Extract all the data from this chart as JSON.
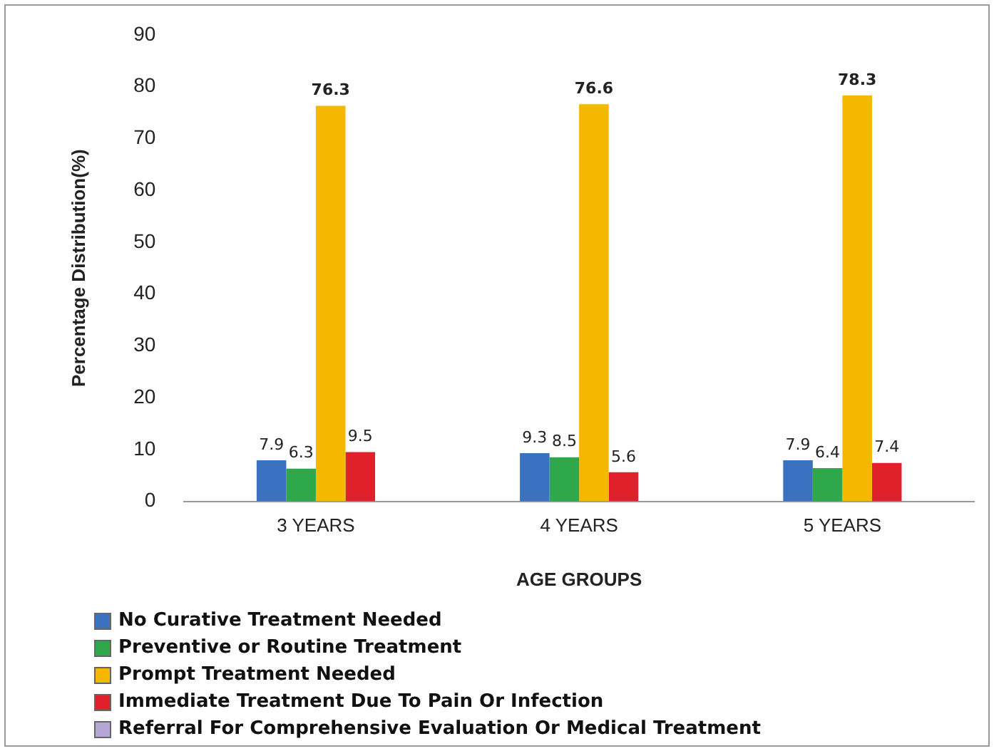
{
  "chart_data": {
    "type": "bar",
    "xlabel": "AGE GROUPS",
    "ylabel": "Percentage Distribution(%)",
    "categories": [
      "3 YEARS",
      "4 YEARS",
      "5 YEARS"
    ],
    "series": [
      {
        "name": "No Curative Treatment Needed",
        "color": "#3a72c0",
        "values": [
          7.9,
          9.3,
          7.9
        ]
      },
      {
        "name": "Preventive or Routine Treatment",
        "color": "#2ea84a",
        "values": [
          6.3,
          8.5,
          6.4
        ]
      },
      {
        "name": "Prompt Treatment Needed",
        "color": "#f5b800",
        "values": [
          76.3,
          76.6,
          78.3
        ]
      },
      {
        "name": "Immediate Treatment Due To Pain Or Infection",
        "color": "#e0202a",
        "values": [
          9.5,
          5.6,
          7.4
        ]
      },
      {
        "name": "Referral For Comprehensive Evaluation Or Medical Treatment",
        "color": "#b4a7d6",
        "values": [
          null,
          null,
          null
        ]
      }
    ],
    "ylim": [
      0,
      90
    ],
    "yticks": [
      0,
      10,
      20,
      30,
      40,
      50,
      60,
      70,
      80,
      90
    ],
    "grid": false,
    "legend": "bottom",
    "data_labels": true
  }
}
